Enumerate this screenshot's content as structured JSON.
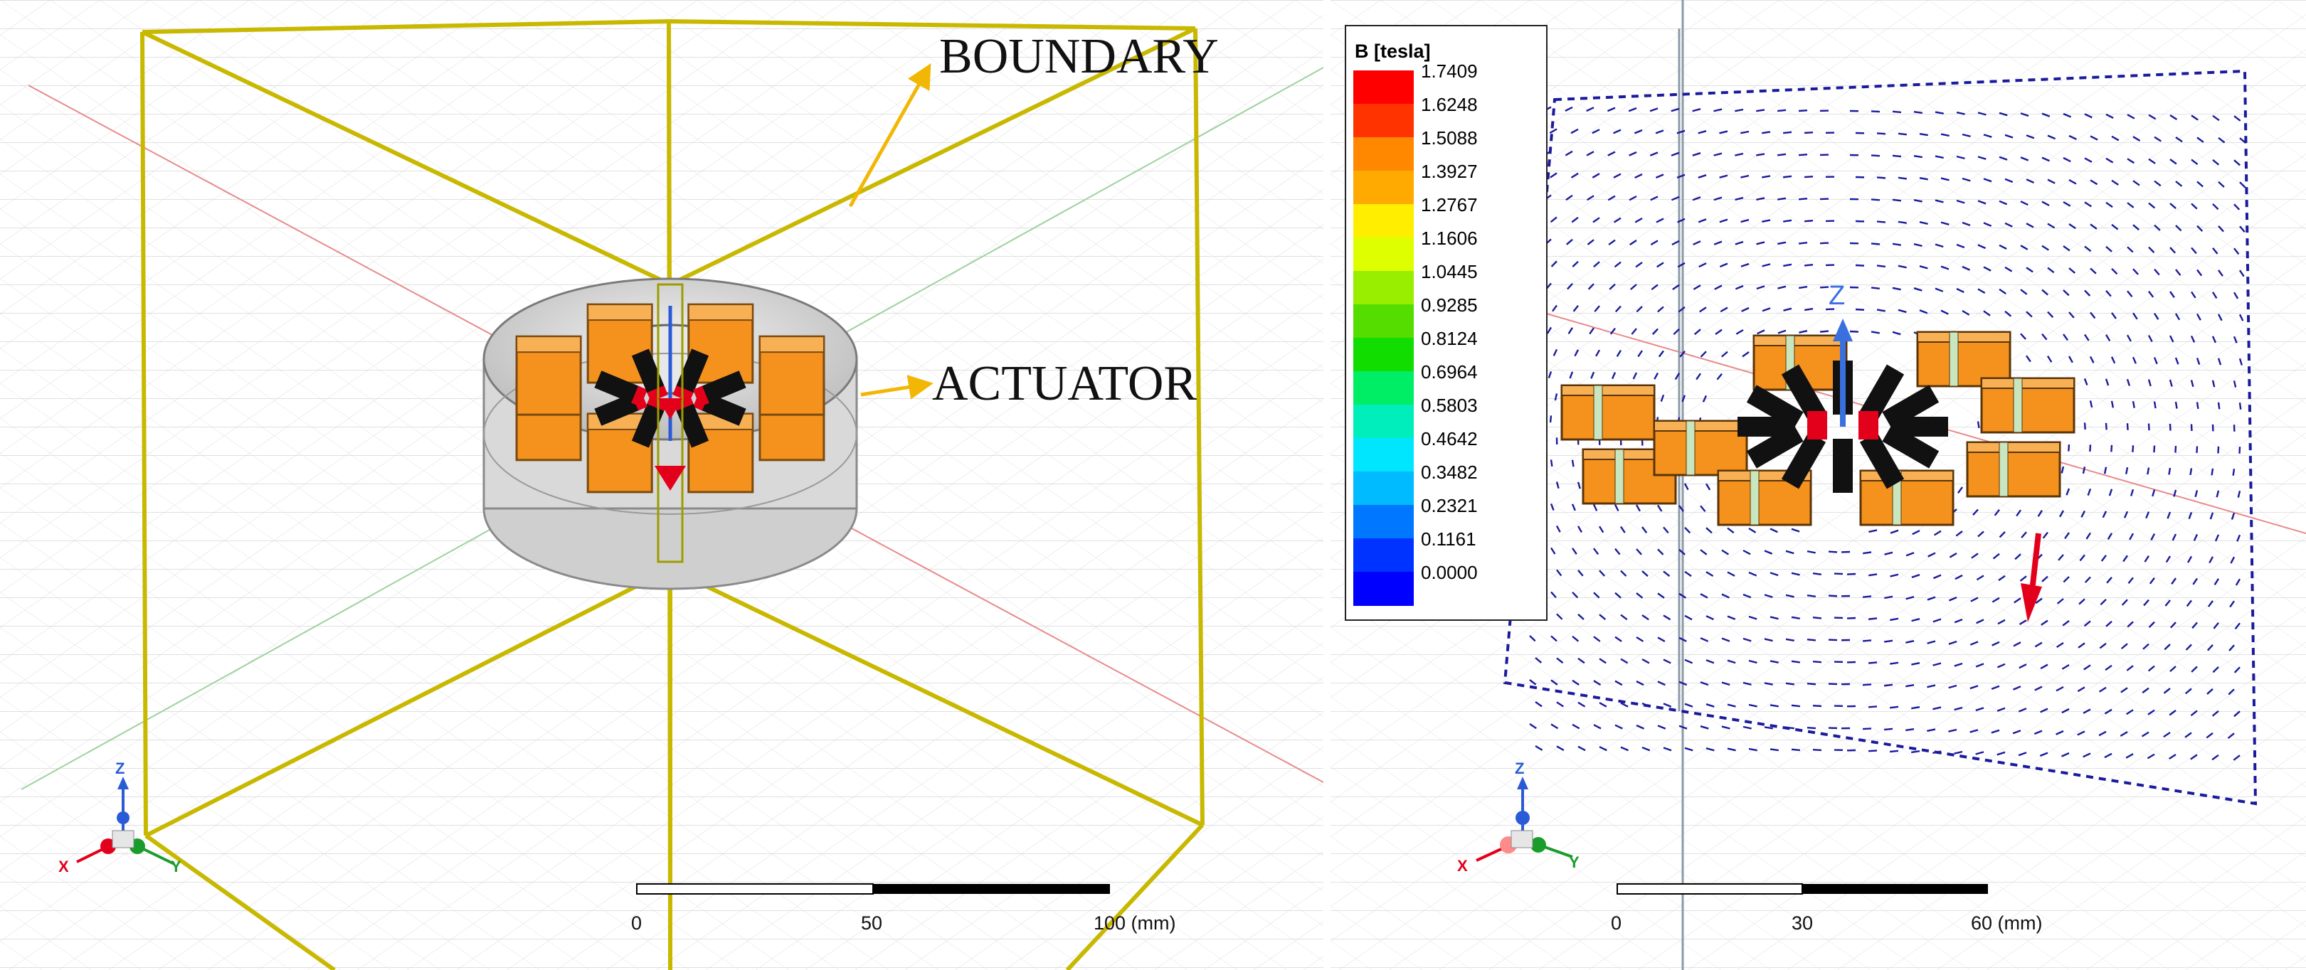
{
  "left": {
    "annotations": {
      "boundary": "BOUNDARY",
      "actuator": "ACTUATOR"
    },
    "scale_bar": {
      "ticks": [
        "0",
        "50",
        "100 (mm)"
      ]
    },
    "axis_triad": {
      "x": "X",
      "y": "Y",
      "z": "Z"
    }
  },
  "right": {
    "legend": {
      "title": "B [tesla]",
      "values": [
        "1.7409",
        "1.6248",
        "1.5088",
        "1.3927",
        "1.2767",
        "1.1606",
        "1.0445",
        "0.9285",
        "0.8124",
        "0.6964",
        "0.5803",
        "0.4642",
        "0.3482",
        "0.2321",
        "0.1161",
        "0.0000"
      ],
      "colors": [
        "#ff0000",
        "#ff3300",
        "#ff8800",
        "#ffaa00",
        "#ffee00",
        "#ddff00",
        "#99ee00",
        "#55dd00",
        "#11dd00",
        "#00ee66",
        "#00eebb",
        "#00e6ff",
        "#00bbff",
        "#0077ff",
        "#0033ff",
        "#0000ff"
      ]
    },
    "scale_bar": {
      "ticks": [
        "0",
        "30",
        "60 (mm)"
      ]
    },
    "axis_triad": {
      "x": "X",
      "y": "Y",
      "z": "Z"
    },
    "center_axis_label": "Z"
  },
  "colors": {
    "boundary_box": "#c8b800",
    "coil": "#f5921e",
    "magnet": "#111111",
    "pole": "#e3001b",
    "field_line": "#1a1a9c",
    "annotation_arrow": "#f2b705"
  }
}
